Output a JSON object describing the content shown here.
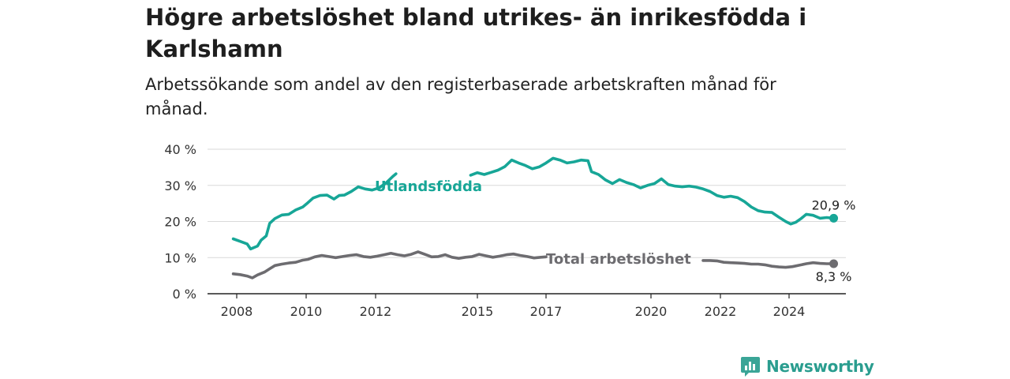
{
  "header": {
    "title": "Högre arbetslöshet bland utrikes- än inrikesfödda i Karlshamn",
    "subtitle": "Arbetssökande som andel av den registerbaserade arbetskraften månad för månad."
  },
  "brand": {
    "name": "Newsworthy",
    "logo_icon": "newsworthy-chart-bubble-icon",
    "color": "#3aa597"
  },
  "chart_data": {
    "type": "line",
    "title": "Högre arbetslöshet bland utrikes- än inrikesfödda i Karlshamn",
    "subtitle": "Arbetssökande som andel av den registerbaserade arbetskraften månad för månad.",
    "xlabel": "",
    "ylabel": "",
    "x_range": [
      2007.85,
      2025.0
    ],
    "ylim": [
      0,
      40
    ],
    "y_ticks": [
      0,
      10,
      20,
      30,
      40
    ],
    "y_tick_labels": [
      "0 %",
      "10 %",
      "20 %",
      "30 %",
      "40 %"
    ],
    "x_ticks": [
      2008,
      2010,
      2012,
      2015,
      2017,
      2020,
      2022,
      2024
    ],
    "x_tick_labels": [
      "2008",
      "2010",
      "2012",
      "2015",
      "2017",
      "2020",
      "2022",
      "2024"
    ],
    "grid": true,
    "legend": "inline labels",
    "series": [
      {
        "name": "Utlandsfödda",
        "color": "#17a697",
        "end_label": "20,9 %",
        "segments": [
          [
            [
              2007.9,
              15.2
            ],
            [
              2008.1,
              14.5
            ],
            [
              2008.3,
              13.8
            ],
            [
              2008.4,
              12.4
            ],
            [
              2008.6,
              13.2
            ],
            [
              2008.7,
              14.8
            ],
            [
              2008.85,
              16
            ],
            [
              2008.95,
              19.5
            ],
            [
              2009.1,
              20.8
            ],
            [
              2009.3,
              21.8
            ],
            [
              2009.5,
              22
            ],
            [
              2009.7,
              23.2
            ],
            [
              2009.9,
              24
            ],
            [
              2010.05,
              25.2
            ],
            [
              2010.2,
              26.5
            ],
            [
              2010.4,
              27.2
            ],
            [
              2010.6,
              27.3
            ],
            [
              2010.8,
              26.2
            ],
            [
              2010.95,
              27.2
            ],
            [
              2011.1,
              27.3
            ],
            [
              2011.3,
              28.3
            ],
            [
              2011.5,
              29.6
            ],
            [
              2011.7,
              29
            ],
            [
              2011.9,
              28.7
            ],
            [
              2012.1,
              29.3
            ],
            [
              2012.3,
              30.6
            ],
            [
              2012.5,
              32.4
            ],
            [
              2012.6,
              33.2
            ]
          ],
          [
            [
              2014.8,
              32.8
            ],
            [
              2015.0,
              33.5
            ],
            [
              2015.2,
              33
            ],
            [
              2015.4,
              33.6
            ],
            [
              2015.6,
              34.2
            ],
            [
              2015.8,
              35.2
            ],
            [
              2016.0,
              37
            ],
            [
              2016.2,
              36.2
            ],
            [
              2016.4,
              35.5
            ],
            [
              2016.6,
              34.6
            ],
            [
              2016.8,
              35.1
            ],
            [
              2017.0,
              36.2
            ],
            [
              2017.2,
              37.5
            ],
            [
              2017.4,
              37
            ],
            [
              2017.6,
              36.2
            ],
            [
              2017.8,
              36.5
            ],
            [
              2018.0,
              37
            ],
            [
              2018.2,
              36.8
            ],
            [
              2018.3,
              33.8
            ],
            [
              2018.5,
              33
            ],
            [
              2018.7,
              31.5
            ],
            [
              2018.9,
              30.5
            ],
            [
              2019.1,
              31.6
            ],
            [
              2019.3,
              30.8
            ],
            [
              2019.5,
              30.2
            ],
            [
              2019.7,
              29.3
            ],
            [
              2019.9,
              30
            ],
            [
              2020.1,
              30.5
            ],
            [
              2020.3,
              31.8
            ],
            [
              2020.5,
              30.2
            ],
            [
              2020.7,
              29.8
            ],
            [
              2020.9,
              29.6
            ],
            [
              2021.1,
              29.8
            ],
            [
              2021.3,
              29.5
            ],
            [
              2021.5,
              29
            ],
            [
              2021.7,
              28.3
            ],
            [
              2021.9,
              27.2
            ],
            [
              2022.1,
              26.7
            ],
            [
              2022.3,
              27
            ],
            [
              2022.5,
              26.6
            ],
            [
              2022.7,
              25.5
            ],
            [
              2022.9,
              24
            ],
            [
              2023.1,
              23
            ],
            [
              2023.3,
              22.6
            ],
            [
              2023.5,
              22.5
            ],
            [
              2023.7,
              21.2
            ],
            [
              2023.9,
              20
            ],
            [
              2024.05,
              19.3
            ],
            [
              2024.2,
              19.8
            ],
            [
              2024.35,
              20.8
            ],
            [
              2024.5,
              22
            ],
            [
              2024.7,
              21.7
            ],
            [
              2024.9,
              20.9
            ],
            [
              2025.1,
              21.1
            ],
            [
              2025.3,
              20.9
            ]
          ]
        ]
      },
      {
        "name": "Total arbetslöshet",
        "color": "#6d6c70",
        "end_label": "8,3 %",
        "segments": [
          [
            [
              2007.9,
              5.5
            ],
            [
              2008.1,
              5.3
            ],
            [
              2008.3,
              4.9
            ],
            [
              2008.45,
              4.4
            ],
            [
              2008.6,
              5.2
            ],
            [
              2008.8,
              6
            ],
            [
              2008.95,
              6.9
            ],
            [
              2009.1,
              7.8
            ],
            [
              2009.3,
              8.2
            ],
            [
              2009.5,
              8.5
            ],
            [
              2009.7,
              8.7
            ],
            [
              2009.9,
              9.3
            ],
            [
              2010.05,
              9.5
            ],
            [
              2010.25,
              10.2
            ],
            [
              2010.45,
              10.6
            ],
            [
              2010.65,
              10.3
            ],
            [
              2010.85,
              10
            ],
            [
              2011.05,
              10.3
            ],
            [
              2011.25,
              10.6
            ],
            [
              2011.45,
              10.8
            ],
            [
              2011.65,
              10.3
            ],
            [
              2011.85,
              10.1
            ],
            [
              2012.05,
              10.4
            ],
            [
              2012.25,
              10.8
            ],
            [
              2012.45,
              11.2
            ],
            [
              2012.65,
              10.8
            ],
            [
              2012.85,
              10.5
            ],
            [
              2013.05,
              10.9
            ],
            [
              2013.25,
              11.6
            ],
            [
              2013.45,
              10.9
            ],
            [
              2013.65,
              10.2
            ],
            [
              2013.85,
              10.3
            ],
            [
              2014.05,
              10.8
            ],
            [
              2014.25,
              10.1
            ],
            [
              2014.45,
              9.8
            ],
            [
              2014.65,
              10.1
            ],
            [
              2014.85,
              10.3
            ],
            [
              2015.05,
              10.9
            ],
            [
              2015.25,
              10.5
            ],
            [
              2015.45,
              10.1
            ],
            [
              2015.65,
              10.4
            ],
            [
              2015.85,
              10.8
            ],
            [
              2016.05,
              11
            ],
            [
              2016.25,
              10.6
            ],
            [
              2016.45,
              10.3
            ],
            [
              2016.65,
              9.9
            ],
            [
              2016.85,
              10.1
            ],
            [
              2017.0,
              10.2
            ]
          ],
          [
            [
              2021.5,
              9.2
            ],
            [
              2021.7,
              9.2
            ],
            [
              2021.9,
              9.1
            ],
            [
              2022.1,
              8.7
            ],
            [
              2022.3,
              8.6
            ],
            [
              2022.5,
              8.5
            ],
            [
              2022.7,
              8.4
            ],
            [
              2022.9,
              8.2
            ],
            [
              2023.1,
              8.2
            ],
            [
              2023.3,
              8
            ],
            [
              2023.5,
              7.6
            ],
            [
              2023.7,
              7.4
            ],
            [
              2023.9,
              7.3
            ],
            [
              2024.1,
              7.5
            ],
            [
              2024.3,
              7.9
            ],
            [
              2024.5,
              8.3
            ],
            [
              2024.7,
              8.6
            ],
            [
              2024.9,
              8.4
            ],
            [
              2025.1,
              8.3
            ],
            [
              2025.3,
              8.3
            ]
          ]
        ]
      }
    ]
  }
}
